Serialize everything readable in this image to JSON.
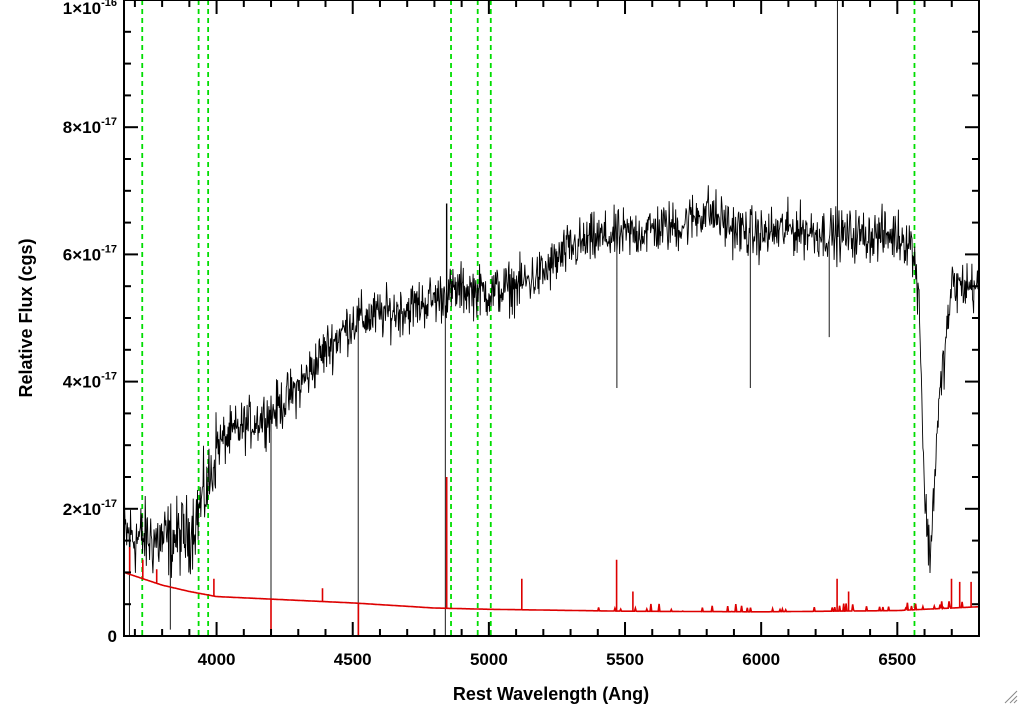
{
  "chart_data": {
    "type": "line",
    "title": "",
    "xlabel": "Rest Wavelength (Ang)",
    "ylabel": "Relative Flux (cgs)",
    "xlim": [
      3660,
      6800
    ],
    "ylim": [
      0,
      1e-16
    ],
    "x_ticks": [
      {
        "value": 4000,
        "label": "4000"
      },
      {
        "value": 4500,
        "label": "4500"
      },
      {
        "value": 5000,
        "label": "5000"
      },
      {
        "value": 5500,
        "label": "5500"
      },
      {
        "value": 6000,
        "label": "6000"
      },
      {
        "value": 6500,
        "label": "6500"
      }
    ],
    "y_ticks": [
      {
        "value": 0,
        "mant": "0",
        "exp": ""
      },
      {
        "value": 2e-17,
        "mant": "2×10",
        "exp": "-17"
      },
      {
        "value": 4e-17,
        "mant": "4×10",
        "exp": "-17"
      },
      {
        "value": 6e-17,
        "mant": "6×10",
        "exp": "-17"
      },
      {
        "value": 8e-17,
        "mant": "8×10",
        "exp": "-17"
      },
      {
        "value": 1e-16,
        "mant": "1×10",
        "exp": "-16"
      }
    ],
    "grid": false,
    "reference_lines": {
      "color": "#00dd00",
      "style": "dashed",
      "x": [
        3727,
        3934,
        3969,
        4861,
        4959,
        5007,
        6563
      ]
    },
    "series": [
      {
        "role": "spectrum",
        "color": "#000000",
        "continuum": {
          "x": [
            3660,
            3700,
            3800,
            3900,
            3980,
            4000,
            4100,
            4200,
            4300,
            4400,
            4500,
            4600,
            4700,
            4800,
            4900,
            5000,
            5100,
            5200,
            5300,
            5400,
            5500,
            5600,
            5700,
            5800,
            5900,
            6000,
            6100,
            6200,
            6300,
            6400,
            6500,
            6550,
            6580,
            6600,
            6620,
            6650,
            6700,
            6800
          ],
          "y": [
            1.6e-17,
            1.55e-17,
            1.5e-17,
            1.6e-17,
            2.5e-17,
            3e-17,
            3.3e-17,
            3.5e-17,
            3.9e-17,
            4.5e-17,
            4.95e-17,
            5.05e-17,
            5.15e-17,
            5.3e-17,
            5.45e-17,
            5.4e-17,
            5.5e-17,
            5.7e-17,
            6.1e-17,
            6.25e-17,
            6.3e-17,
            6.4e-17,
            6.45e-17,
            6.7e-17,
            6.4e-17,
            6.3e-17,
            6.4e-17,
            6.35e-17,
            6.3e-17,
            6.3e-17,
            6.3e-17,
            6.2e-17,
            5.4e-17,
            2.2e-17,
            1.2e-17,
            3.5e-17,
            5.5e-17,
            5.5e-17
          ]
        },
        "noise_amplitude": 4e-18,
        "features": [
          {
            "x": 4200,
            "y": 0
          },
          {
            "x": 4520,
            "y": 0
          },
          {
            "x": 4840,
            "y": 0
          },
          {
            "x": 4845,
            "y": 6.8e-17
          },
          {
            "x": 5470,
            "y": 8.8e-17
          },
          {
            "x": 5470,
            "y": 3.9e-17
          },
          {
            "x": 5960,
            "y": 3.9e-17
          },
          {
            "x": 6280,
            "y": 1e-16
          },
          {
            "x": 6250,
            "y": 4.7e-17
          },
          {
            "x": 3830,
            "y": 1e-18
          },
          {
            "x": 3680,
            "y": 0
          }
        ]
      },
      {
        "role": "error",
        "color": "#dd0000",
        "continuum": {
          "x": [
            3660,
            3800,
            3900,
            4000,
            4200,
            4500,
            4800,
            5000,
            5500,
            6000,
            6500,
            6800
          ],
          "y": [
            1e-17,
            8e-18,
            7e-18,
            6.2e-18,
            5.8e-18,
            5.2e-18,
            4.4e-18,
            4.2e-18,
            3.9e-18,
            3.8e-18,
            4e-18,
            4.6e-18
          ]
        },
        "features": [
          {
            "x": 3680,
            "y": 1.4e-17
          },
          {
            "x": 3730,
            "y": 1.2e-17
          },
          {
            "x": 3780,
            "y": 1.05e-17
          },
          {
            "x": 3990,
            "y": 9e-18
          },
          {
            "x": 4200,
            "y": 0
          },
          {
            "x": 4390,
            "y": 7.5e-18
          },
          {
            "x": 4520,
            "y": 0
          },
          {
            "x": 4845,
            "y": 2.5e-17
          },
          {
            "x": 5120,
            "y": 9e-18
          },
          {
            "x": 5470,
            "y": 1.2e-17
          },
          {
            "x": 5530,
            "y": 7e-18
          },
          {
            "x": 6280,
            "y": 9e-18
          },
          {
            "x": 6320,
            "y": 7e-18
          },
          {
            "x": 6700,
            "y": 9e-18
          },
          {
            "x": 6730,
            "y": 8.5e-18
          },
          {
            "x": 6770,
            "y": 8.5e-18
          }
        ]
      }
    ]
  }
}
